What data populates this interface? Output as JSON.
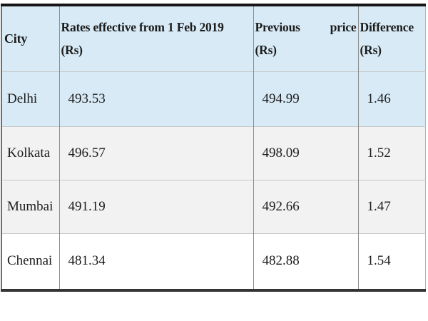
{
  "colors": {
    "header_bg": "#d8eaf6",
    "highlight_row_bg": "#d8eaf6",
    "alt_row_bg": "#f2f2f2",
    "plain_row_bg": "#ffffff",
    "text": "#1c1c1c",
    "thick_border": "#161616",
    "grid_border": "#8d8d8d"
  },
  "table": {
    "headers": {
      "city": {
        "label": "City"
      },
      "rates": {
        "line1": "Rates effective from 1 Feb 2019",
        "line2": "(Rs)"
      },
      "previous": {
        "word1": "Previous",
        "word2": "price",
        "line2": "(Rs)"
      },
      "difference": {
        "line1": "Difference",
        "line2": "(Rs)"
      }
    },
    "rows": [
      {
        "city": "Delhi",
        "rate": "493.53",
        "previous": "494.99",
        "difference": "1.46"
      },
      {
        "city": "Kolkata",
        "rate": "496.57",
        "previous": "498.09",
        "difference": "1.52"
      },
      {
        "city": "Mumbai",
        "rate": "491.19",
        "previous": "492.66",
        "difference": "1.47"
      },
      {
        "city": "Chennai",
        "rate": "481.34",
        "previous": "482.88",
        "difference": "1.54"
      }
    ]
  },
  "chart_data": {
    "type": "table",
    "title": "",
    "columns": [
      "City",
      "Rates effective from 1 Feb 2019 (Rs)",
      "Previous price (Rs)",
      "Difference (Rs)"
    ],
    "categories": [
      "Delhi",
      "Kolkata",
      "Mumbai",
      "Chennai"
    ],
    "series": [
      {
        "name": "Rates effective from 1 Feb 2019 (Rs)",
        "values": [
          493.53,
          496.57,
          491.19,
          481.34
        ]
      },
      {
        "name": "Previous price (Rs)",
        "values": [
          494.99,
          498.09,
          492.66,
          482.88
        ]
      },
      {
        "name": "Difference (Rs)",
        "values": [
          1.46,
          1.52,
          1.47,
          1.54
        ]
      }
    ]
  }
}
